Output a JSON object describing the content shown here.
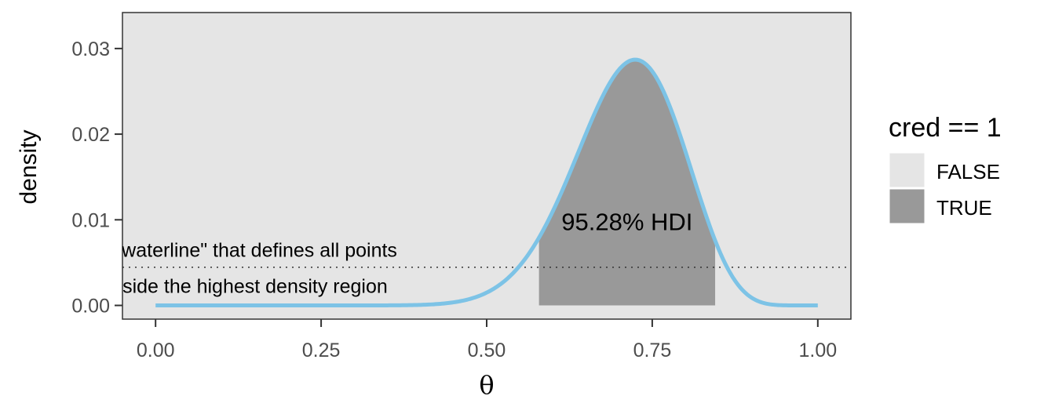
{
  "chart_data": {
    "type": "area",
    "xlabel": "θ",
    "ylabel": "density",
    "xlim": [
      -0.05,
      1.05
    ],
    "ylim": [
      -0.0016,
      0.0342
    ],
    "xticks": [
      0,
      0.25,
      0.5,
      0.75,
      1
    ],
    "xtick_labels": [
      "0.00",
      "0.25",
      "0.50",
      "0.75",
      "1.00"
    ],
    "yticks": [
      0,
      0.01,
      0.02,
      0.03
    ],
    "ytick_labels": [
      "0.00",
      "0.01",
      "0.02",
      "0.03"
    ],
    "grid": false,
    "distribution": {
      "family": "beta",
      "alpha": 21.5,
      "beta": 8.8,
      "peak_density": 0.0287
    },
    "hdi": {
      "lower": 0.579,
      "upper": 0.845,
      "label": "95.28% HDI"
    },
    "waterline": {
      "y": 0.00445,
      "style": "dotted"
    },
    "annotations": [
      {
        "text": "waterline\" that defines all points",
        "x": 0.0,
        "y": 0.0065
      },
      {
        "text": "nside the highest density region",
        "x": 0.0,
        "y": 0.0023
      }
    ],
    "legend": {
      "title": "cred == 1",
      "placement": "right",
      "entries": [
        {
          "label": "FALSE",
          "color": "#e5e5e5"
        },
        {
          "label": "TRUE",
          "color": "#999999"
        }
      ]
    },
    "colors": {
      "curve": "#7dc3e6",
      "panel": "#e5e5e5",
      "hdi_fill": "#999999"
    }
  }
}
